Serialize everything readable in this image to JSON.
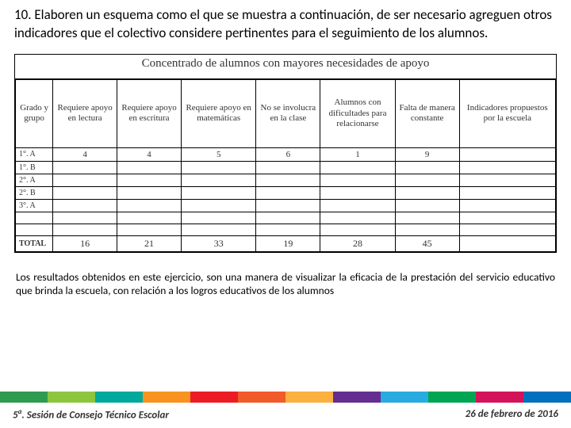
{
  "instruction": "10. Elaboren un esquema como el que se muestra a continuación, de ser necesario agreguen otros indicadores que el colectivo  considere pertinentes para el seguimiento de los alumnos.",
  "table_title": "Concentrado de alumnos con mayores necesidades de apoyo",
  "headers": {
    "c0": "Grado y grupo",
    "c1": "Requiere apoyo en lectura",
    "c2": "Requiere apoyo en escritura",
    "c3": "Requiere apoyo en matemáticas",
    "c4": "No se involucra en la clase",
    "c5": "Alumnos con dificultades para relacionarse",
    "c6": "Falta de manera constante",
    "c7": "Indicadores propuestos por la escuela"
  },
  "rows": [
    {
      "g": "1°. A",
      "v": [
        "4",
        "4",
        "5",
        "6",
        "1",
        "9",
        ""
      ]
    },
    {
      "g": "1°. B",
      "v": [
        "",
        "",
        "",
        "",
        "",
        "",
        ""
      ]
    },
    {
      "g": "2°. A",
      "v": [
        "",
        "",
        "",
        "",
        "",
        "",
        ""
      ]
    },
    {
      "g": "2°. B",
      "v": [
        "",
        "",
        "",
        "",
        "",
        "",
        ""
      ]
    },
    {
      "g": "3°. A",
      "v": [
        "",
        "",
        "",
        "",
        "",
        "",
        ""
      ]
    },
    {
      "g": "",
      "v": [
        "",
        "",
        "",
        "",
        "",
        "",
        ""
      ]
    },
    {
      "g": "",
      "v": [
        "",
        "",
        "",
        "",
        "",
        "",
        ""
      ]
    }
  ],
  "total_label": "TOTAL",
  "totals": [
    "16",
    "21",
    "33",
    "19",
    "28",
    "45",
    ""
  ],
  "closing": "Los resultados obtenidos en este ejercicio, son una manera de visualizar la eficacia de la prestación del servicio educativo que brinda la escuela, con relación a los logros educativos de los alumnos",
  "footer": {
    "left_sup": "a",
    "left_pre": "5",
    "left_post": ". Sesión de Consejo Técnico Escolar",
    "right": "26 de febrero de 2016"
  },
  "stripe_colors": [
    "#2e9b4f",
    "#8cc63f",
    "#00a99d",
    "#f7931e",
    "#ed1c24",
    "#f15a29",
    "#fbb040",
    "#662d91",
    "#29abe2",
    "#00a651",
    "#d4145a",
    "#0071bc"
  ]
}
